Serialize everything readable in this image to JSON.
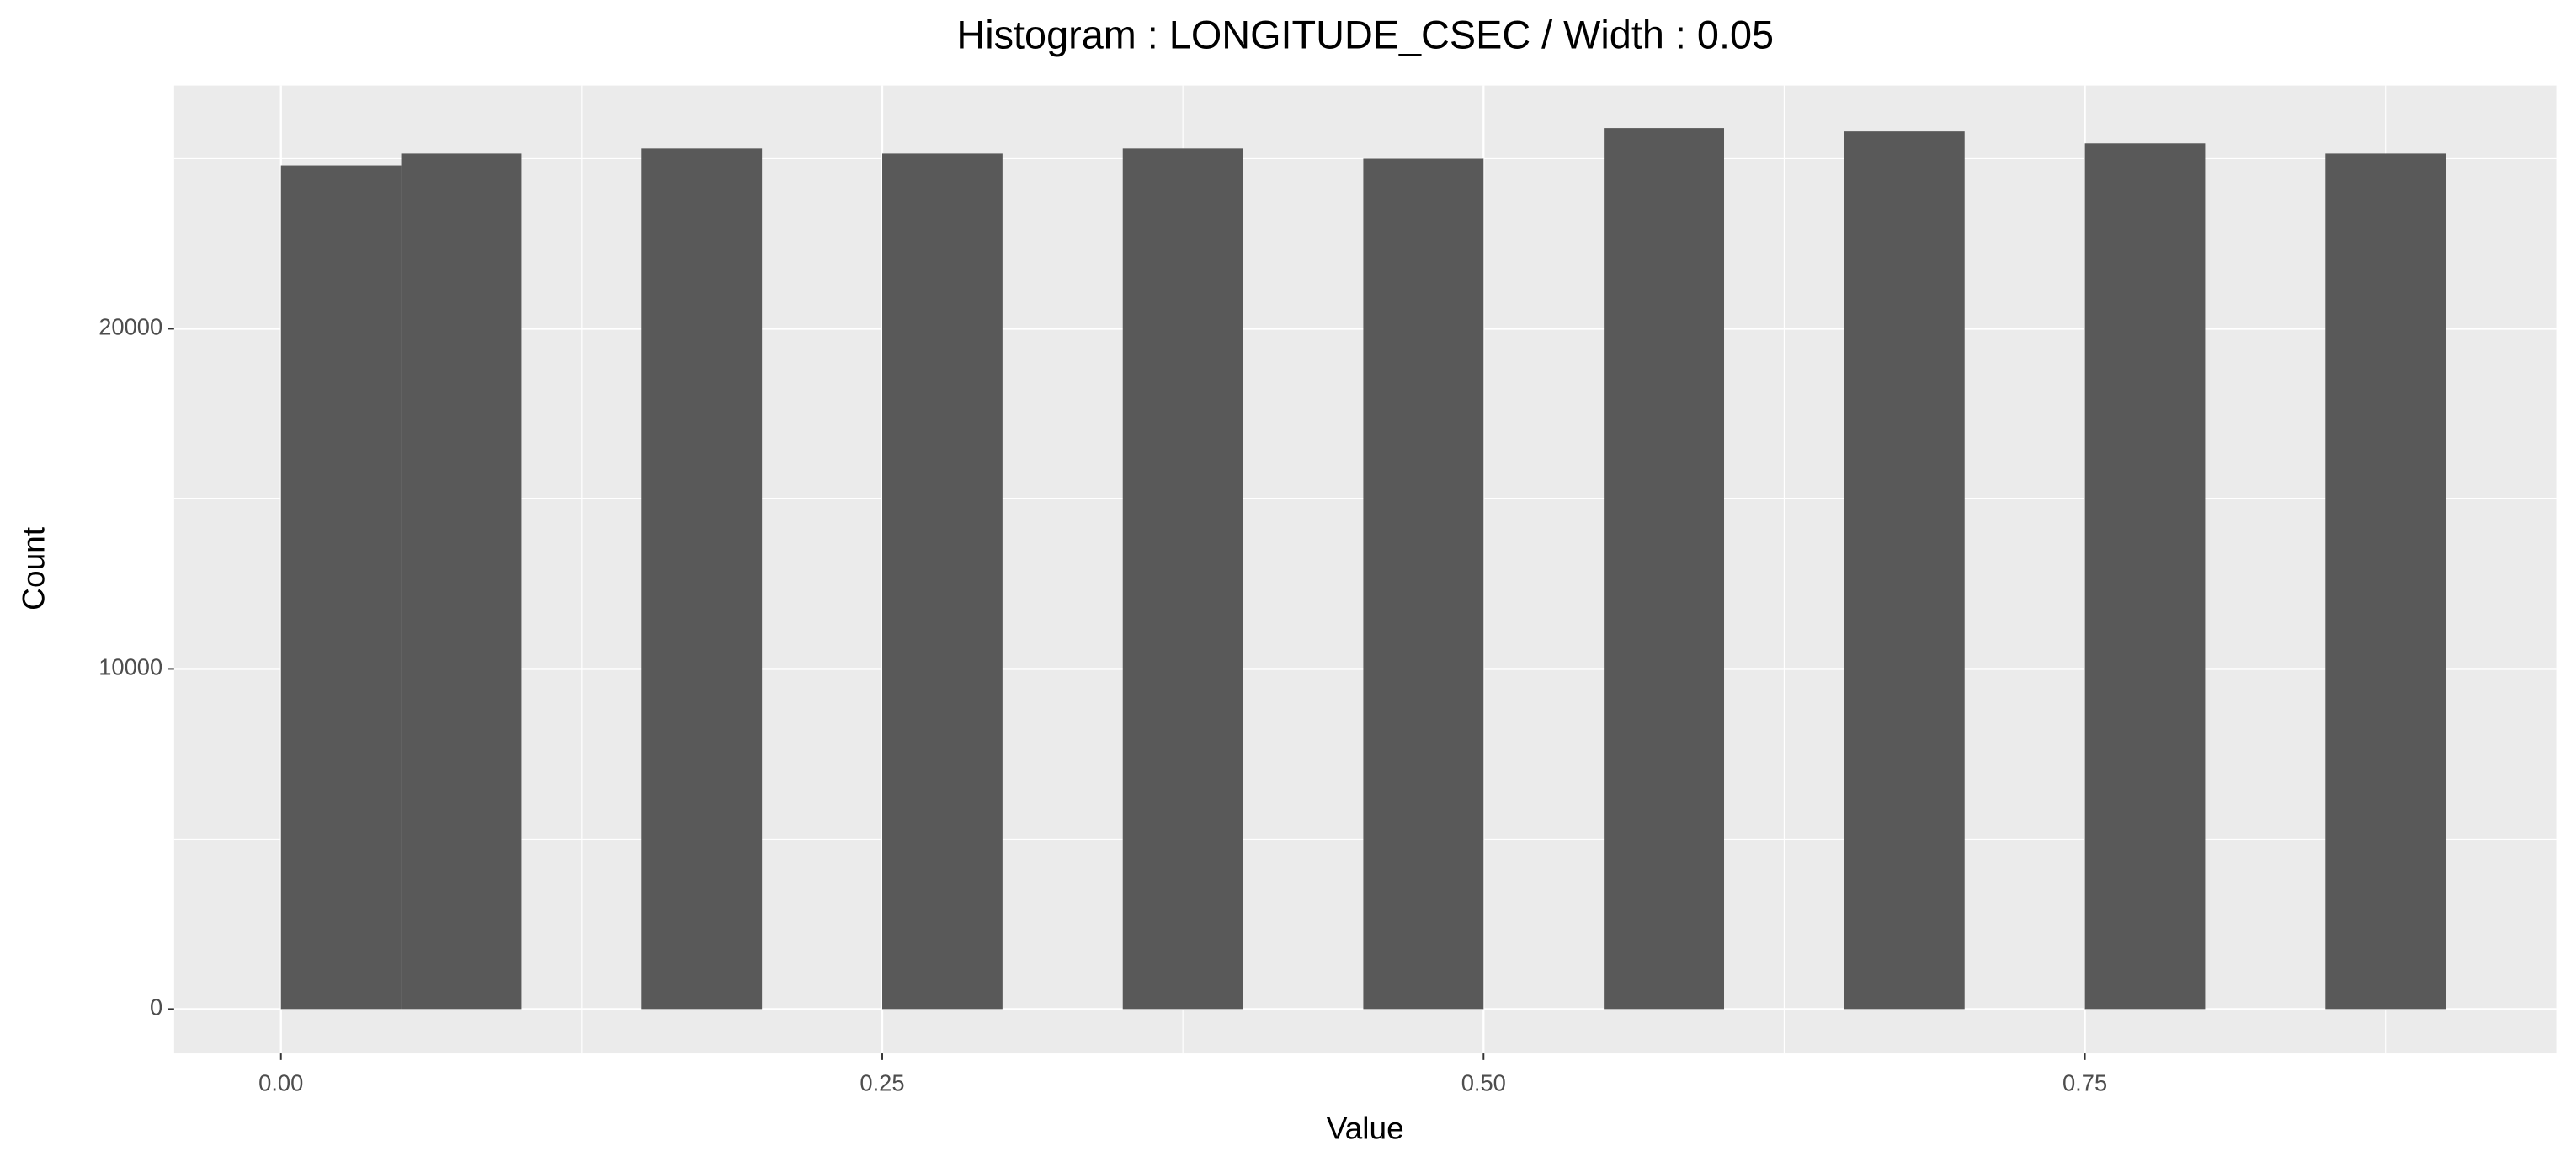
{
  "chart_data": {
    "type": "histogram",
    "title": "Histogram : LONGITUDE_CSEC / Width : 0.05",
    "x_label": "Value",
    "y_label": "Count",
    "bins": [
      0,
      0.05,
      0.1,
      0.15,
      0.2,
      0.25,
      0.3,
      0.35,
      0.4,
      0.45,
      0.5,
      0.55,
      0.6,
      0.65,
      0.7,
      0.75,
      0.8,
      0.85,
      0.9
    ],
    "values": [
      24800,
      25150,
      0,
      25300,
      0,
      25150,
      0,
      25300,
      0,
      25000,
      0,
      25900,
      0,
      25800,
      0,
      25450,
      0,
      25150
    ],
    "color": "#595959",
    "xlim": [
      -0.0444,
      0.946
    ],
    "ylim": [
      -1304,
      27150
    ],
    "xticks": [
      {
        "value": 0,
        "label": "0.00"
      },
      {
        "value": 0.25,
        "label": "0.25"
      },
      {
        "value": 0.5,
        "label": "0.50"
      },
      {
        "value": 0.75,
        "label": "0.75"
      }
    ],
    "yticks": [
      0,
      10000,
      20000
    ],
    "xminor": [
      0.125,
      0.375,
      0.625,
      0.875
    ],
    "yminor": [
      5000,
      15000,
      25000
    ],
    "grid": true
  }
}
